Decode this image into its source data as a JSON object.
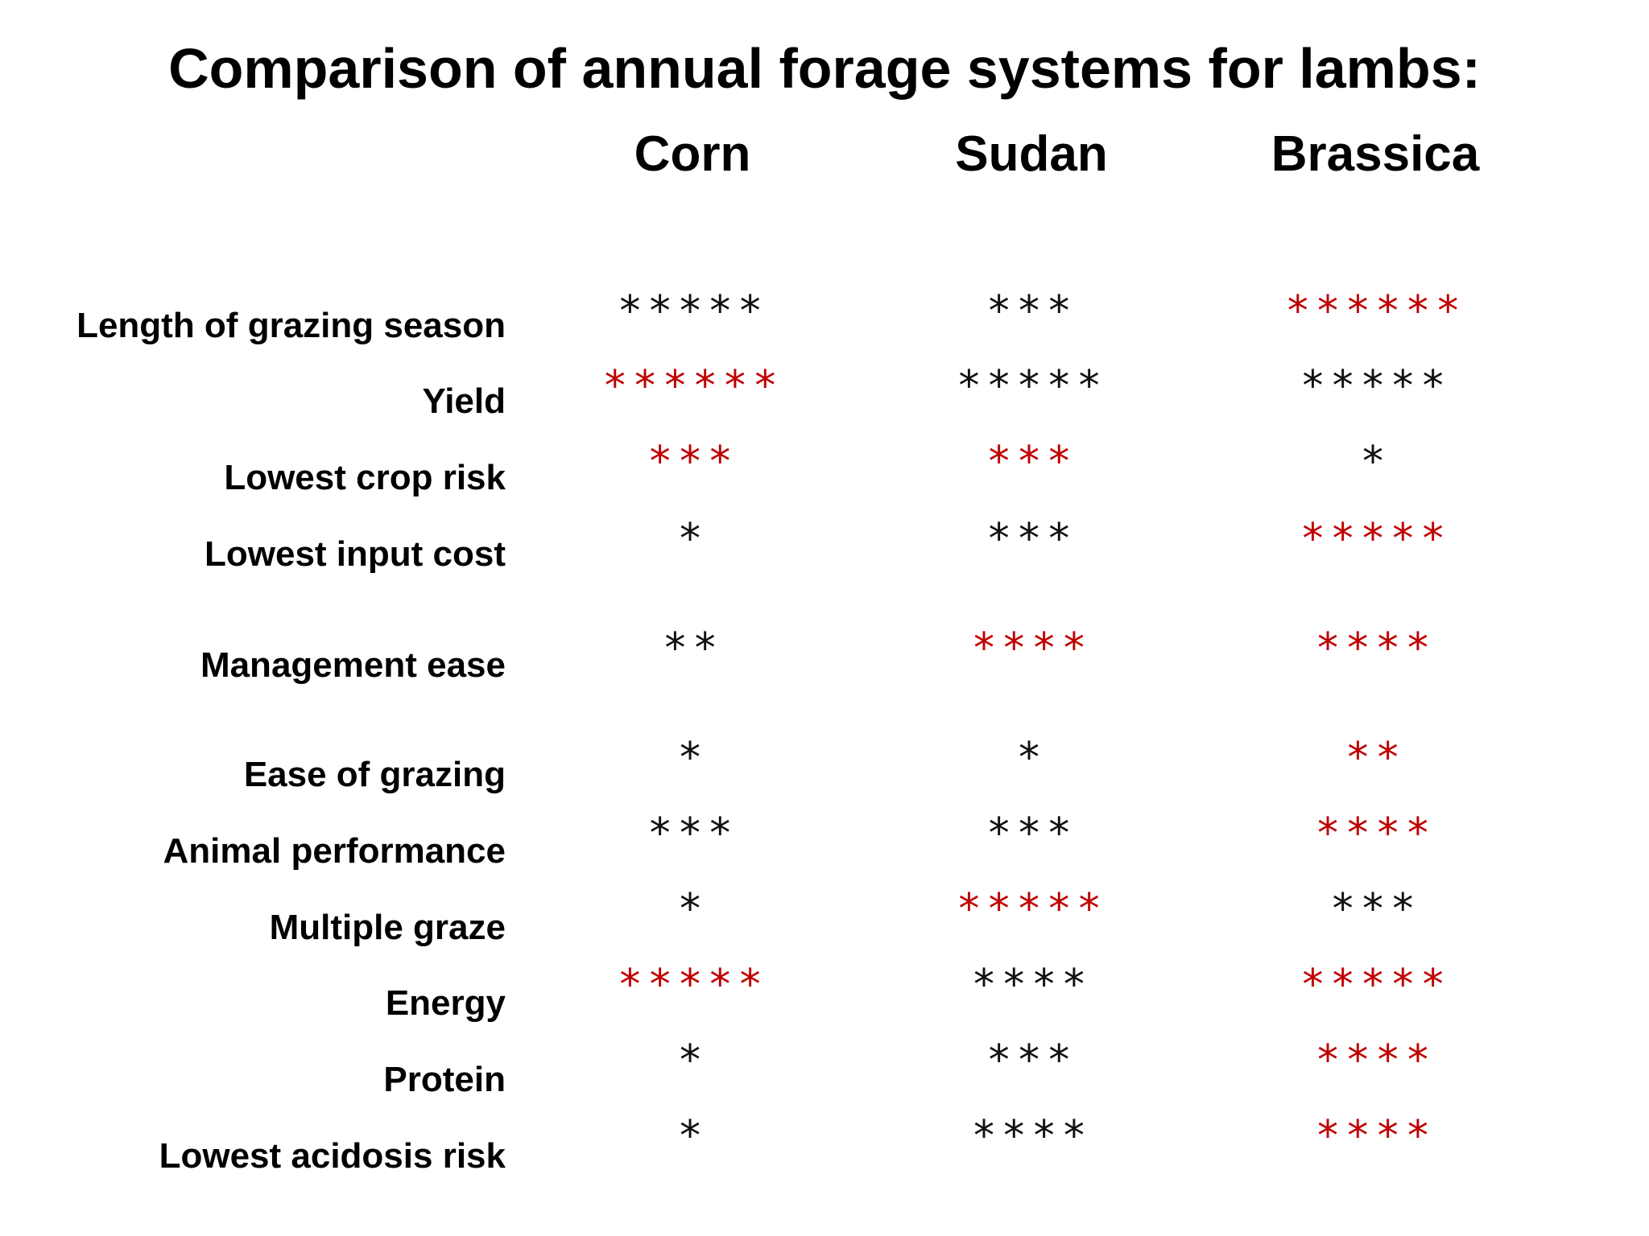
{
  "title": "Comparison of annual forage systems for lambs:",
  "columns": [
    "Corn",
    "Sudan",
    "Brassica"
  ],
  "colors": {
    "highlight": "#c00000",
    "normal": "#111111"
  },
  "rows": [
    {
      "label": "Length of grazing season",
      "ratings": [
        {
          "stars": "*****",
          "rating": 5,
          "highlight": false
        },
        {
          "stars": "***",
          "rating": 3,
          "highlight": false
        },
        {
          "stars": "******",
          "rating": 6,
          "highlight": true
        }
      ]
    },
    {
      "label": "Yield",
      "ratings": [
        {
          "stars": "******",
          "rating": 6,
          "highlight": true
        },
        {
          "stars": "*****",
          "rating": 5,
          "highlight": false
        },
        {
          "stars": "*****",
          "rating": 5,
          "highlight": false
        }
      ]
    },
    {
      "label": "Lowest  crop risk",
      "ratings": [
        {
          "stars": "***",
          "rating": 3,
          "highlight": true
        },
        {
          "stars": "***",
          "rating": 3,
          "highlight": true
        },
        {
          "stars": "*",
          "rating": 1,
          "highlight": false
        }
      ]
    },
    {
      "label": "Lowest input cost",
      "ratings": [
        {
          "stars": "*",
          "rating": 1,
          "highlight": false
        },
        {
          "stars": "***",
          "rating": 3,
          "highlight": false
        },
        {
          "stars": "*****",
          "rating": 5,
          "highlight": true
        }
      ]
    },
    {
      "label": "Management ease",
      "ratings": [
        {
          "stars": "**",
          "rating": 2,
          "highlight": false
        },
        {
          "stars": "****",
          "rating": 4,
          "highlight": true
        },
        {
          "stars": "****",
          "rating": 4,
          "highlight": true
        }
      ]
    },
    {
      "label": "Ease of grazing",
      "ratings": [
        {
          "stars": "*",
          "rating": 1,
          "highlight": false
        },
        {
          "stars": "*",
          "rating": 1,
          "highlight": false
        },
        {
          "stars": "**",
          "rating": 2,
          "highlight": true
        }
      ]
    },
    {
      "label": "Animal performance",
      "ratings": [
        {
          "stars": "***",
          "rating": 3,
          "highlight": false
        },
        {
          "stars": "***",
          "rating": 3,
          "highlight": false
        },
        {
          "stars": "****",
          "rating": 4,
          "highlight": true
        }
      ]
    },
    {
      "label": "Multiple graze",
      "ratings": [
        {
          "stars": "*",
          "rating": 1,
          "highlight": false
        },
        {
          "stars": "*****",
          "rating": 5,
          "highlight": true
        },
        {
          "stars": "***",
          "rating": 3,
          "highlight": false
        }
      ]
    },
    {
      "label": "Energy",
      "ratings": [
        {
          "stars": "*****",
          "rating": 5,
          "highlight": true
        },
        {
          "stars": "****",
          "rating": 4,
          "highlight": false
        },
        {
          "stars": "*****",
          "rating": 5,
          "highlight": true
        }
      ]
    },
    {
      "label": "Protein",
      "ratings": [
        {
          "stars": "*",
          "rating": 1,
          "highlight": false
        },
        {
          "stars": "***",
          "rating": 3,
          "highlight": false
        },
        {
          "stars": "****",
          "rating": 4,
          "highlight": true
        }
      ]
    },
    {
      "label": "Lowest acidosis risk",
      "ratings": [
        {
          "stars": "*",
          "rating": 1,
          "highlight": false
        },
        {
          "stars": "****",
          "rating": 4,
          "highlight": false
        },
        {
          "stars": "****",
          "rating": 4,
          "highlight": true
        }
      ]
    }
  ]
}
